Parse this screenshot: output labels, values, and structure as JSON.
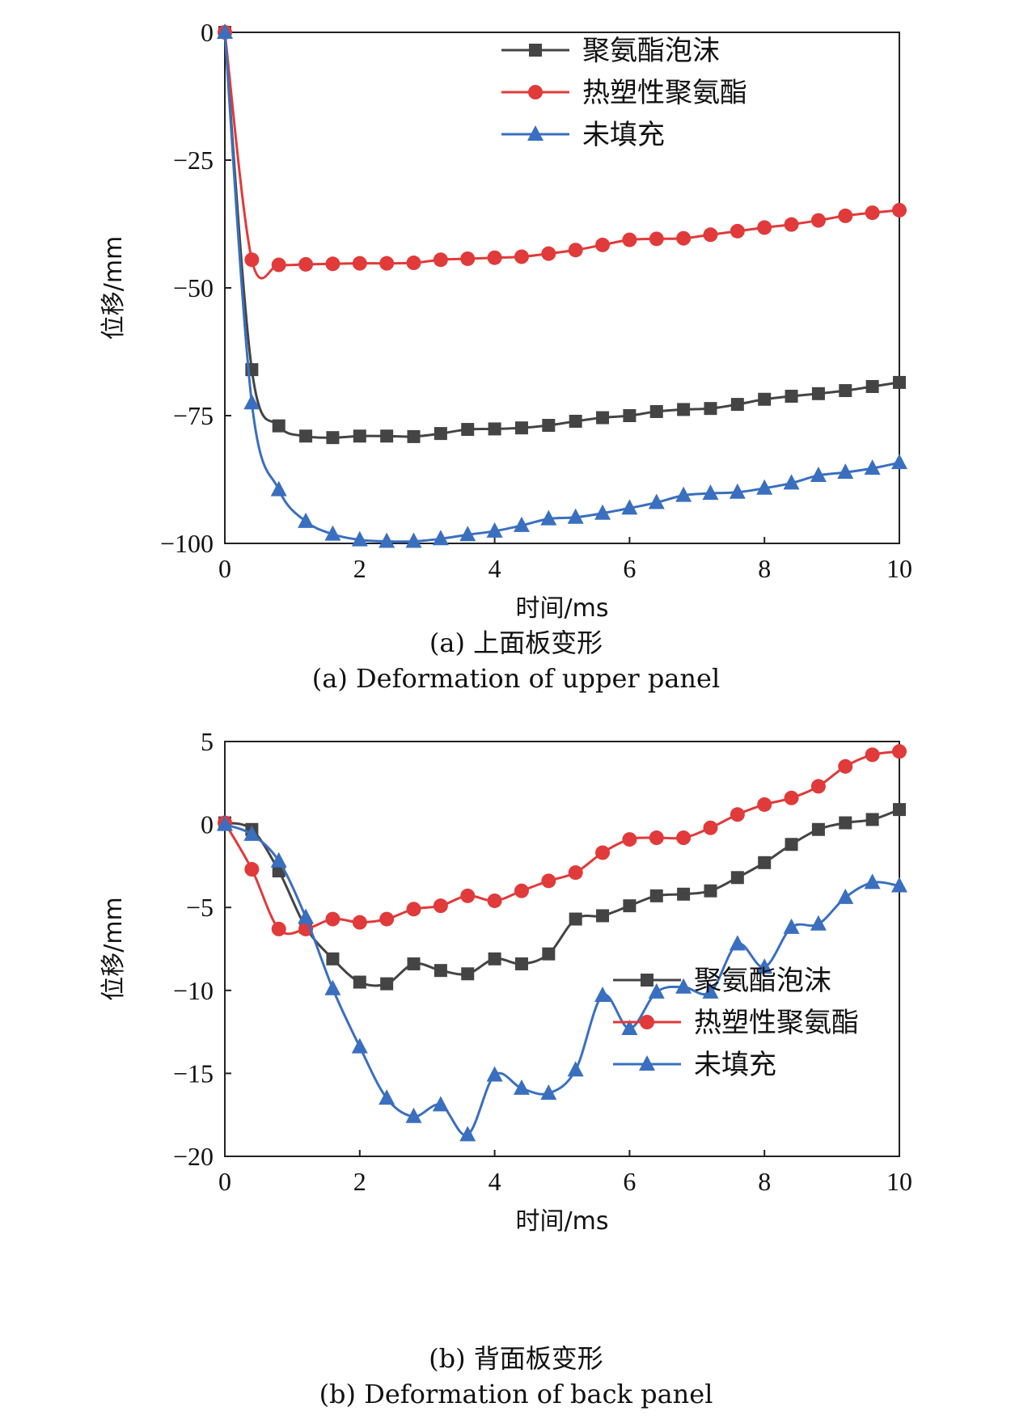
{
  "chart_data": [
    {
      "type": "line",
      "xlabel": "时间/ms",
      "ylabel": "位移/mm",
      "xlim": [
        0,
        10
      ],
      "ylim": [
        -100,
        0
      ],
      "xticks": [
        0,
        2,
        4,
        6,
        8,
        10
      ],
      "yticks": [
        0,
        -25,
        -50,
        -75,
        -100
      ],
      "ytick_labels": [
        "0",
        "−25",
        "−50",
        "−75",
        "−100"
      ],
      "legend_position": "top-right",
      "caption_cn": "(a) 上面板变形",
      "caption_en": "(a) Deformation of  upper panel",
      "series": [
        {
          "name": "聚氨酯泡沫",
          "color": "#444444",
          "marker": "square",
          "x": [
            0,
            0.4,
            0.8,
            1.2,
            1.6,
            2.0,
            2.4,
            2.8,
            3.2,
            3.6,
            4.0,
            4.4,
            4.8,
            5.2,
            5.6,
            6.0,
            6.4,
            6.8,
            7.2,
            7.6,
            8.0,
            8.4,
            8.8,
            9.2,
            9.6,
            10.0
          ],
          "y": [
            0,
            -66,
            -77,
            -79,
            -79.3,
            -79,
            -79,
            -79.1,
            -78.5,
            -77.7,
            -77.6,
            -77.4,
            -76.9,
            -76.1,
            -75.4,
            -75.0,
            -74.2,
            -73.8,
            -73.6,
            -72.8,
            -71.8,
            -71.2,
            -70.7,
            -70.1,
            -69.3,
            -68.5
          ]
        },
        {
          "name": "热塑性聚氨酯",
          "color": "#e03a3a",
          "marker": "circle",
          "x": [
            0,
            0.4,
            0.8,
            1.2,
            1.6,
            2.0,
            2.4,
            2.8,
            3.2,
            3.6,
            4.0,
            4.4,
            4.8,
            5.2,
            5.6,
            6.0,
            6.4,
            6.8,
            7.2,
            7.6,
            8.0,
            8.4,
            8.8,
            9.2,
            9.6,
            10.0
          ],
          "y": [
            0,
            -44.5,
            -45.5,
            -45.4,
            -45.3,
            -45.2,
            -45.2,
            -45.1,
            -44.5,
            -44.3,
            -44.1,
            -43.9,
            -43.3,
            -42.6,
            -41.6,
            -40.6,
            -40.4,
            -40.3,
            -39.6,
            -38.9,
            -38.2,
            -37.6,
            -36.8,
            -35.9,
            -35.3,
            -34.8
          ]
        },
        {
          "name": "未填充",
          "color": "#3a6fbf",
          "marker": "triangle",
          "x": [
            0,
            0.4,
            0.8,
            1.2,
            1.6,
            2.0,
            2.4,
            2.8,
            3.2,
            3.6,
            4.0,
            4.4,
            4.8,
            5.2,
            5.6,
            6.0,
            6.4,
            6.8,
            7.2,
            7.6,
            8.0,
            8.4,
            8.8,
            9.2,
            9.6,
            10.0
          ],
          "y": [
            0,
            -72.5,
            -89.5,
            -95.7,
            -98.2,
            -99.3,
            -99.6,
            -99.6,
            -99.1,
            -98.3,
            -97.6,
            -96.5,
            -95.2,
            -94.9,
            -94.1,
            -93.1,
            -92.0,
            -90.6,
            -90.2,
            -90.0,
            -89.2,
            -88.2,
            -86.7,
            -86.1,
            -85.3,
            -84.2
          ]
        }
      ]
    },
    {
      "type": "line",
      "xlabel": "时间/ms",
      "ylabel": "位移/mm",
      "xlim": [
        0,
        10
      ],
      "ylim": [
        -20,
        5
      ],
      "xticks": [
        0,
        2,
        4,
        6,
        8,
        10
      ],
      "yticks": [
        5,
        0,
        -5,
        -10,
        -15,
        -20
      ],
      "ytick_labels": [
        "5",
        "0",
        "−5",
        "−10",
        "−15",
        "−20"
      ],
      "legend_position": "bottom-right",
      "caption_cn": "(b) 背面板变形",
      "caption_en": "(b) Deformation of back panel",
      "series": [
        {
          "name": "聚氨酯泡沫",
          "color": "#444444",
          "marker": "square",
          "x": [
            0,
            0.4,
            0.8,
            1.2,
            1.6,
            2.0,
            2.4,
            2.8,
            3.2,
            3.6,
            4.0,
            4.4,
            4.8,
            5.2,
            5.6,
            6.0,
            6.4,
            6.8,
            7.2,
            7.6,
            8.0,
            8.4,
            8.8,
            9.2,
            9.6,
            10.0
          ],
          "y": [
            0.1,
            -0.3,
            -2.8,
            -6.2,
            -8.1,
            -9.5,
            -9.6,
            -8.4,
            -8.8,
            -9.0,
            -8.1,
            -8.4,
            -7.8,
            -5.7,
            -5.5,
            -4.9,
            -4.3,
            -4.2,
            -4.0,
            -3.2,
            -2.3,
            -1.2,
            -0.3,
            0.1,
            0.3,
            0.9
          ]
        },
        {
          "name": "热塑性聚氨酯",
          "color": "#e03a3a",
          "marker": "circle",
          "x": [
            0,
            0.4,
            0.8,
            1.2,
            1.6,
            2.0,
            2.4,
            2.8,
            3.2,
            3.6,
            4.0,
            4.4,
            4.8,
            5.2,
            5.6,
            6.0,
            6.4,
            6.8,
            7.2,
            7.6,
            8.0,
            8.4,
            8.8,
            9.2,
            9.6,
            10.0
          ],
          "y": [
            0.1,
            -2.7,
            -6.3,
            -6.3,
            -5.7,
            -5.9,
            -5.7,
            -5.1,
            -4.9,
            -4.3,
            -4.6,
            -4.0,
            -3.4,
            -2.9,
            -1.7,
            -0.9,
            -0.8,
            -0.8,
            -0.2,
            0.6,
            1.2,
            1.6,
            2.3,
            3.5,
            4.2,
            4.4
          ]
        },
        {
          "name": "未填充",
          "color": "#3a6fbf",
          "marker": "triangle",
          "x": [
            0,
            0.4,
            0.8,
            1.2,
            1.6,
            2.0,
            2.4,
            2.8,
            3.2,
            3.6,
            4.0,
            4.4,
            4.8,
            5.2,
            5.6,
            6.0,
            6.4,
            6.8,
            7.2,
            7.6,
            8.0,
            8.4,
            8.8,
            9.2,
            9.6,
            10.0
          ],
          "y": [
            0,
            -0.6,
            -2.2,
            -5.6,
            -9.9,
            -13.4,
            -16.5,
            -17.6,
            -16.9,
            -18.7,
            -15.1,
            -15.9,
            -16.2,
            -14.8,
            -10.3,
            -12.3,
            -10.1,
            -9.8,
            -10.1,
            -7.2,
            -8.6,
            -6.2,
            -6.0,
            -4.4,
            -3.5,
            -3.7
          ]
        }
      ]
    }
  ]
}
